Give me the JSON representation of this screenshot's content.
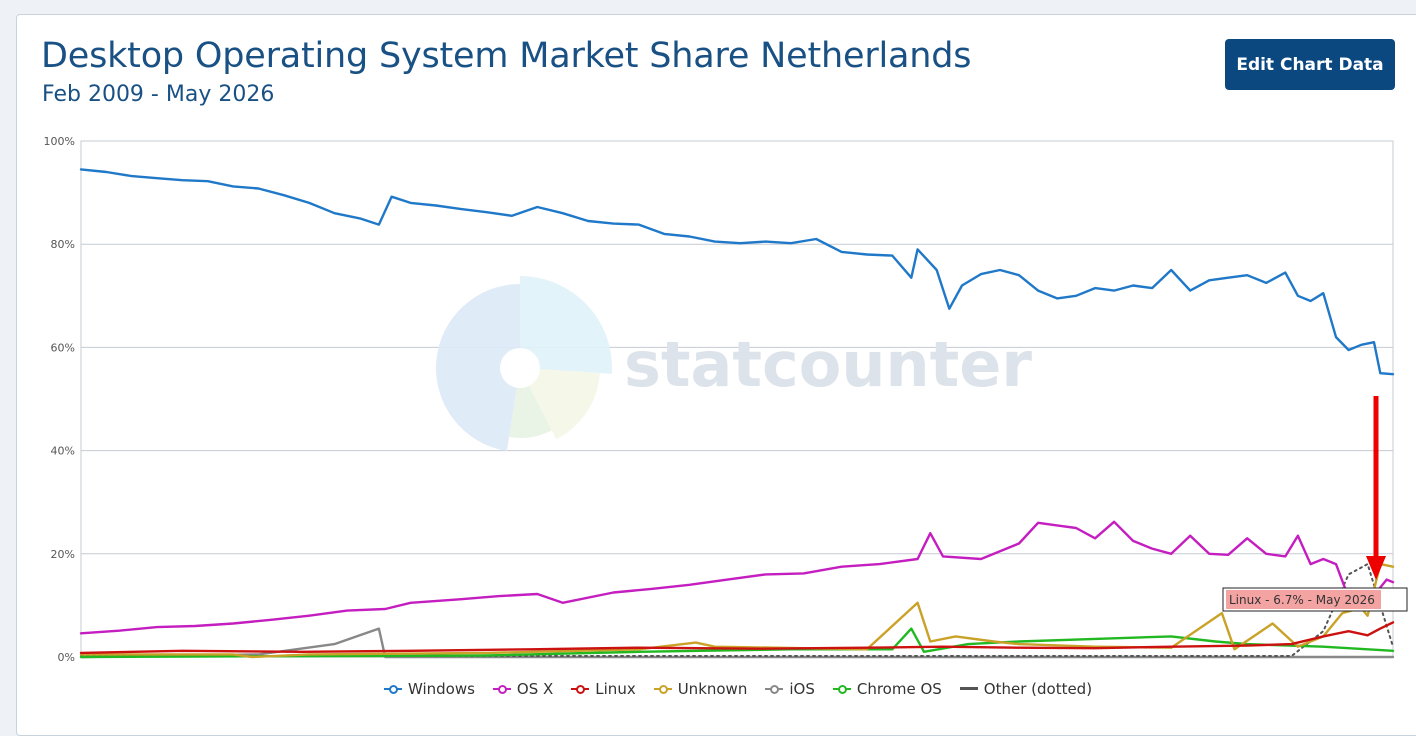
{
  "header": {
    "title": "Desktop Operating System Market Share Netherlands",
    "subtitle": "Feb 2009 - May 2026",
    "edit_button_label": "Edit Chart Data"
  },
  "watermark": {
    "text": "statcounter"
  },
  "tooltip": {
    "text": "Linux - 6.7% - May 2026"
  },
  "colors": {
    "windows": "#1f78c8",
    "osx": "#c41ec0",
    "linux": "#cc1111",
    "unknown": "#c9a227",
    "ios": "#888888",
    "chromeos": "#22b822",
    "other": "#555555",
    "arrow": "#ee0000",
    "tooltip_bg": "#f4a3a3"
  },
  "legend": [
    {
      "key": "windows",
      "label": "Windows",
      "icon": "circle-line-icon"
    },
    {
      "key": "osx",
      "label": "OS X",
      "icon": "circle-line-icon"
    },
    {
      "key": "linux",
      "label": "Linux",
      "icon": "circle-line-icon"
    },
    {
      "key": "unknown",
      "label": "Unknown",
      "icon": "circle-line-icon"
    },
    {
      "key": "ios",
      "label": "iOS",
      "icon": "circle-line-icon"
    },
    {
      "key": "chromeos",
      "label": "Chrome OS",
      "icon": "circle-line-icon"
    },
    {
      "key": "other",
      "label": "Other (dotted)",
      "icon": "dash-line-icon"
    }
  ],
  "chart_data": {
    "type": "line",
    "title": "Desktop Operating System Market Share Netherlands",
    "subtitle": "Feb 2009 - May 2026",
    "x_range": [
      "2009-02",
      "2026-05"
    ],
    "ylim": [
      0,
      100
    ],
    "y_ticks": [
      "0%",
      "20%",
      "40%",
      "60%",
      "80%",
      "100%"
    ],
    "grid": true,
    "legend_position": "bottom",
    "series": [
      {
        "name": "Windows",
        "key": "windows",
        "points": [
          [
            "2009-02",
            94.5
          ],
          [
            "2009-06",
            94.0
          ],
          [
            "2009-10",
            93.2
          ],
          [
            "2010-02",
            92.8
          ],
          [
            "2010-06",
            92.4
          ],
          [
            "2010-10",
            92.2
          ],
          [
            "2011-02",
            91.2
          ],
          [
            "2011-06",
            90.8
          ],
          [
            "2011-10",
            89.5
          ],
          [
            "2012-02",
            88.0
          ],
          [
            "2012-06",
            86.0
          ],
          [
            "2012-10",
            85.0
          ],
          [
            "2013-01",
            83.8
          ],
          [
            "2013-03",
            89.2
          ],
          [
            "2013-06",
            88.0
          ],
          [
            "2013-10",
            87.5
          ],
          [
            "2014-02",
            86.8
          ],
          [
            "2014-06",
            86.2
          ],
          [
            "2014-10",
            85.5
          ],
          [
            "2015-02",
            87.2
          ],
          [
            "2015-06",
            86.0
          ],
          [
            "2015-10",
            84.5
          ],
          [
            "2016-02",
            84.0
          ],
          [
            "2016-06",
            83.8
          ],
          [
            "2016-10",
            82.0
          ],
          [
            "2017-02",
            81.5
          ],
          [
            "2017-06",
            80.5
          ],
          [
            "2017-10",
            80.2
          ],
          [
            "2018-02",
            80.5
          ],
          [
            "2018-06",
            80.2
          ],
          [
            "2018-10",
            81.0
          ],
          [
            "2019-02",
            78.5
          ],
          [
            "2019-06",
            78.0
          ],
          [
            "2019-10",
            77.8
          ],
          [
            "2020-01",
            73.5
          ],
          [
            "2020-02",
            79.0
          ],
          [
            "2020-05",
            75.0
          ],
          [
            "2020-07",
            67.5
          ],
          [
            "2020-09",
            72.0
          ],
          [
            "2020-12",
            74.2
          ],
          [
            "2021-03",
            75.0
          ],
          [
            "2021-06",
            74.0
          ],
          [
            "2021-09",
            71.0
          ],
          [
            "2021-12",
            69.5
          ],
          [
            "2022-03",
            70.0
          ],
          [
            "2022-06",
            71.5
          ],
          [
            "2022-09",
            71.0
          ],
          [
            "2022-12",
            72.0
          ],
          [
            "2023-03",
            71.5
          ],
          [
            "2023-06",
            75.0
          ],
          [
            "2023-09",
            71.0
          ],
          [
            "2023-12",
            73.0
          ],
          [
            "2024-03",
            73.5
          ],
          [
            "2024-06",
            74.0
          ],
          [
            "2024-09",
            72.5
          ],
          [
            "2024-12",
            74.5
          ],
          [
            "2025-02",
            70.0
          ],
          [
            "2025-04",
            69.0
          ],
          [
            "2025-06",
            70.5
          ],
          [
            "2025-08",
            62.0
          ],
          [
            "2025-10",
            59.5
          ],
          [
            "2025-12",
            60.5
          ],
          [
            "2026-02",
            61.0
          ],
          [
            "2026-03",
            55.0
          ],
          [
            "2026-05",
            54.8
          ]
        ]
      },
      {
        "name": "OS X",
        "key": "osx",
        "points": [
          [
            "2009-02",
            4.6
          ],
          [
            "2009-08",
            5.1
          ],
          [
            "2010-02",
            5.8
          ],
          [
            "2010-08",
            6.0
          ],
          [
            "2011-02",
            6.5
          ],
          [
            "2011-08",
            7.2
          ],
          [
            "2012-02",
            8.0
          ],
          [
            "2012-08",
            9.0
          ],
          [
            "2013-02",
            9.3
          ],
          [
            "2013-06",
            10.5
          ],
          [
            "2014-02",
            11.2
          ],
          [
            "2014-08",
            11.8
          ],
          [
            "2015-02",
            12.2
          ],
          [
            "2015-06",
            10.5
          ],
          [
            "2016-02",
            12.5
          ],
          [
            "2016-08",
            13.2
          ],
          [
            "2017-02",
            14.0
          ],
          [
            "2017-08",
            15.0
          ],
          [
            "2018-02",
            16.0
          ],
          [
            "2018-08",
            16.2
          ],
          [
            "2019-02",
            17.5
          ],
          [
            "2019-08",
            18.0
          ],
          [
            "2020-02",
            19.0
          ],
          [
            "2020-04",
            24.0
          ],
          [
            "2020-06",
            19.5
          ],
          [
            "2020-12",
            19.0
          ],
          [
            "2021-06",
            22.0
          ],
          [
            "2021-09",
            26.0
          ],
          [
            "2021-12",
            25.5
          ],
          [
            "2022-03",
            25.0
          ],
          [
            "2022-06",
            23.0
          ],
          [
            "2022-09",
            26.2
          ],
          [
            "2022-12",
            22.5
          ],
          [
            "2023-03",
            21.0
          ],
          [
            "2023-06",
            20.0
          ],
          [
            "2023-09",
            23.5
          ],
          [
            "2023-12",
            20.0
          ],
          [
            "2024-03",
            19.8
          ],
          [
            "2024-06",
            23.0
          ],
          [
            "2024-09",
            20.0
          ],
          [
            "2024-12",
            19.5
          ],
          [
            "2025-02",
            23.5
          ],
          [
            "2025-04",
            18.0
          ],
          [
            "2025-06",
            19.0
          ],
          [
            "2025-08",
            18.0
          ],
          [
            "2025-10",
            11.5
          ],
          [
            "2025-12",
            9.8
          ],
          [
            "2026-02",
            12.0
          ],
          [
            "2026-04",
            15.0
          ],
          [
            "2026-05",
            14.5
          ]
        ]
      },
      {
        "name": "Linux",
        "key": "linux",
        "points": [
          [
            "2009-02",
            0.8
          ],
          [
            "2010-06",
            1.2
          ],
          [
            "2012-01",
            1.0
          ],
          [
            "2013-06",
            1.2
          ],
          [
            "2015-01",
            1.5
          ],
          [
            "2016-06",
            1.8
          ],
          [
            "2018-01",
            1.6
          ],
          [
            "2019-06",
            1.8
          ],
          [
            "2020-06",
            2.0
          ],
          [
            "2021-06",
            1.8
          ],
          [
            "2022-06",
            1.7
          ],
          [
            "2023-06",
            2.0
          ],
          [
            "2024-06",
            2.2
          ],
          [
            "2025-01",
            2.5
          ],
          [
            "2025-06",
            4.0
          ],
          [
            "2025-10",
            5.0
          ],
          [
            "2026-01",
            4.2
          ],
          [
            "2026-03",
            5.5
          ],
          [
            "2026-05",
            6.7
          ]
        ]
      },
      {
        "name": "Unknown",
        "key": "unknown",
        "points": [
          [
            "2009-02",
            0.5
          ],
          [
            "2011-02",
            0.5
          ],
          [
            "2011-05",
            0.0
          ],
          [
            "2012-02",
            0.5
          ],
          [
            "2014-06",
            0.8
          ],
          [
            "2016-06",
            1.5
          ],
          [
            "2017-03",
            2.8
          ],
          [
            "2017-06",
            2.0
          ],
          [
            "2019-06",
            1.5
          ],
          [
            "2020-02",
            10.5
          ],
          [
            "2020-04",
            3.0
          ],
          [
            "2020-08",
            4.0
          ],
          [
            "2021-02",
            3.0
          ],
          [
            "2021-06",
            2.5
          ],
          [
            "2022-06",
            2.0
          ],
          [
            "2023-06",
            1.8
          ],
          [
            "2024-02",
            8.5
          ],
          [
            "2024-04",
            1.5
          ],
          [
            "2024-10",
            6.5
          ],
          [
            "2025-02",
            2.0
          ],
          [
            "2025-06",
            4.0
          ],
          [
            "2025-09",
            8.5
          ],
          [
            "2025-12",
            9.5
          ],
          [
            "2026-01",
            8.0
          ],
          [
            "2026-03",
            18.0
          ],
          [
            "2026-05",
            17.5
          ]
        ]
      },
      {
        "name": "iOS",
        "key": "ios",
        "points": [
          [
            "2009-02",
            0.0
          ],
          [
            "2011-06",
            0.5
          ],
          [
            "2012-06",
            2.5
          ],
          [
            "2013-01",
            5.5
          ],
          [
            "2013-02",
            0.0
          ],
          [
            "2026-05",
            0.0
          ]
        ]
      },
      {
        "name": "Chrome OS",
        "key": "chromeos",
        "points": [
          [
            "2009-02",
            0.0
          ],
          [
            "2014-06",
            0.3
          ],
          [
            "2016-06",
            1.0
          ],
          [
            "2018-06",
            1.5
          ],
          [
            "2019-10",
            1.5
          ],
          [
            "2020-01",
            5.5
          ],
          [
            "2020-03",
            1.0
          ],
          [
            "2020-10",
            2.5
          ],
          [
            "2021-06",
            3.0
          ],
          [
            "2022-06",
            3.5
          ],
          [
            "2023-06",
            4.0
          ],
          [
            "2024-01",
            3.0
          ],
          [
            "2024-06",
            2.5
          ],
          [
            "2025-06",
            2.0
          ],
          [
            "2026-05",
            1.2
          ]
        ]
      },
      {
        "name": "Other (dotted)",
        "key": "other",
        "dashed": true,
        "points": [
          [
            "2009-02",
            0.2
          ],
          [
            "2025-01",
            0.2
          ],
          [
            "2025-06",
            5.0
          ],
          [
            "2025-10",
            16.0
          ],
          [
            "2026-01",
            18.0
          ],
          [
            "2026-03",
            10.0
          ],
          [
            "2026-05",
            2.0
          ]
        ]
      }
    ]
  }
}
